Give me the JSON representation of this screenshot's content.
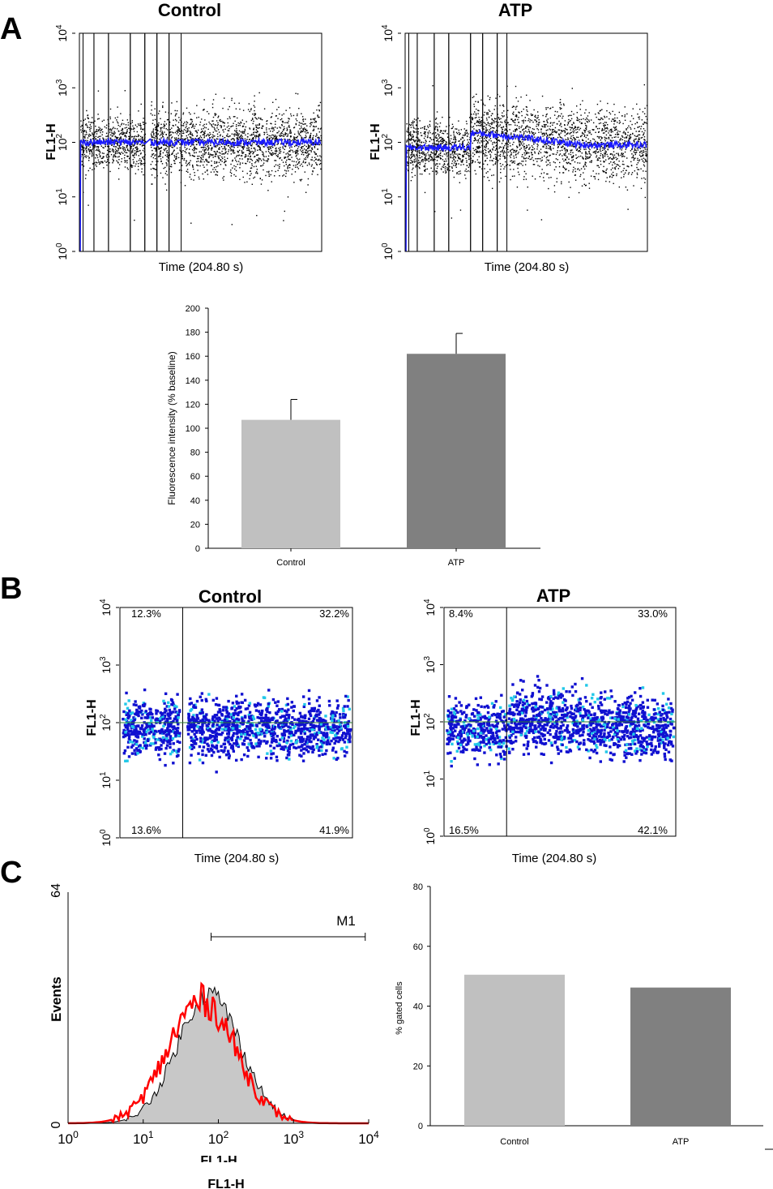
{
  "panels": {
    "A": "A",
    "B": "B",
    "C": "C"
  },
  "chart_data": [
    {
      "id": "A-control",
      "type": "scatter",
      "title": "Control",
      "xlabel": "Time (204.80 s)",
      "ylabel": "FL1-H",
      "yscale": "log",
      "ylim": [
        1,
        10000
      ],
      "ytick_base": "10",
      "ytick_exps": [
        "0",
        "1",
        "2",
        "3",
        "4"
      ],
      "points_note": "dense event cloud centred near 100 with a blue running median",
      "median_level": 100,
      "spread_decades": [
        1.5,
        2.6
      ],
      "gap_fraction": [
        0.27,
        0.29
      ]
    },
    {
      "id": "A-atp",
      "type": "scatter",
      "title": "ATP",
      "xlabel": "Time (204.80 s)",
      "ylabel": "FL1-H",
      "yscale": "log",
      "ylim": [
        1,
        10000
      ],
      "ytick_base": "10",
      "ytick_exps": [
        "0",
        "1",
        "2",
        "3",
        "4"
      ],
      "median_level_before": 80,
      "median_level_after": 150,
      "median_level_end": 90,
      "addition_fraction": 0.27
    },
    {
      "id": "A-bar",
      "type": "bar",
      "ylabel": "Fluorescence intensity (% baseline)",
      "categories": [
        "Control",
        "ATP"
      ],
      "values": [
        107,
        162
      ],
      "errors": [
        17,
        17
      ],
      "colors": [
        "#c0c0c0",
        "#808080"
      ],
      "ylim": [
        0,
        200
      ],
      "yticks": [
        "0",
        "20",
        "40",
        "60",
        "80",
        "100",
        "120",
        "140",
        "160",
        "180",
        "200"
      ]
    },
    {
      "id": "B-control",
      "type": "scatter",
      "title": "Control",
      "xlabel": "Time (204.80 s)",
      "ylabel": "FL1-H",
      "yscale": "log",
      "ylim": [
        1,
        10000
      ],
      "ytick_base": "10",
      "ytick_exps": [
        "0",
        "1",
        "2",
        "3",
        "4"
      ],
      "quadrants": {
        "ul": "12.3%",
        "ur": "32.2%",
        "ll": "13.6%",
        "lr": "41.9%"
      },
      "quad_x_fraction": 0.27,
      "quad_y_level": 100
    },
    {
      "id": "B-atp",
      "type": "scatter",
      "title": "ATP",
      "xlabel": "Time (204.80 s)",
      "ylabel": "FL1-H",
      "yscale": "log",
      "ylim": [
        1,
        10000
      ],
      "ytick_base": "10",
      "ytick_exps": [
        "0",
        "1",
        "2",
        "3",
        "4"
      ],
      "quadrants": {
        "ul": "8.4%",
        "ur": "33.0%",
        "ll": "16.5%",
        "lr": "42.1%"
      },
      "quad_x_fraction": 0.27,
      "quad_y_level": 100
    },
    {
      "id": "C-hist",
      "type": "area",
      "xlabel": "FL1-H",
      "xlabel2": "FL1-H",
      "ylabel": "Events",
      "xscale": "log",
      "xlim": [
        1,
        10000
      ],
      "ylim": [
        0,
        64
      ],
      "yticks": [
        "0",
        "64"
      ],
      "xtick_base": "10",
      "xtick_exps": [
        "0",
        "1",
        "2",
        "3",
        "4"
      ],
      "marker": {
        "label": "M1",
        "from": 80,
        "to": 9000
      },
      "series": [
        {
          "name": "Control",
          "peak_x": 75,
          "peak_y": 36,
          "style": "grey filled, black outline"
        },
        {
          "name": "ATP",
          "peak_x": 60,
          "peak_y": 34,
          "style": "red line"
        }
      ]
    },
    {
      "id": "C-bar",
      "type": "bar",
      "ylabel": "% gated cells",
      "categories": [
        "Control",
        "ATP"
      ],
      "values": [
        50.5,
        46.2
      ],
      "colors": [
        "#c0c0c0",
        "#808080"
      ],
      "ylim": [
        0,
        80
      ],
      "yticks": [
        "0",
        "20",
        "40",
        "60",
        "80"
      ],
      "ghost_labels": [
        "Control",
        "ATP"
      ]
    }
  ],
  "colors": {
    "trace_blue": "#1a1aff",
    "dot_blue": "#1010d0",
    "dot_cyan": "#22c8e8",
    "hist_red": "#ff0000",
    "hist_fill": "#c8c8c8"
  }
}
